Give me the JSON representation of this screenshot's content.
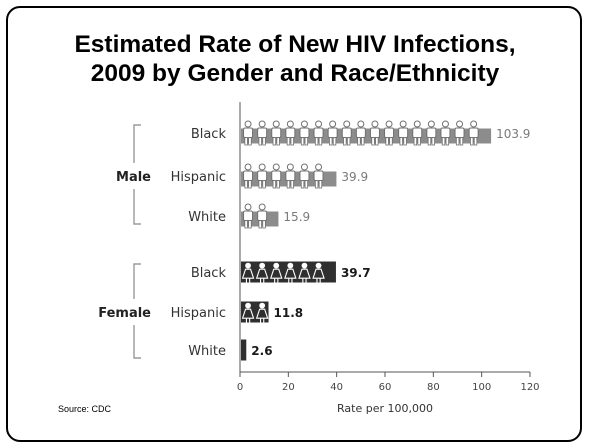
{
  "slide": {
    "title_line1": "Estimated Rate of New HIV Infections,",
    "title_line2": "2009 by Gender and Race/Ethnicity",
    "source": "Source: CDC"
  },
  "chart_data": {
    "type": "bar",
    "orientation": "horizontal",
    "style": "pictograph",
    "xlabel": "Rate per 100,000",
    "xlim": [
      0,
      120
    ],
    "xticks": [
      "0",
      "20",
      "40",
      "60",
      "80",
      "100",
      "120"
    ],
    "groups": [
      {
        "name": "Male",
        "color": "#8c8c8c",
        "label_color": "#7a7a7a",
        "icon": "male-figure-icon",
        "categories": [
          "Black",
          "Hispanic",
          "White"
        ],
        "values": [
          103.9,
          39.9,
          15.9
        ],
        "labels": [
          "103.9",
          "39.9",
          "15.9"
        ]
      },
      {
        "name": "Female",
        "color": "#2f2f2f",
        "label_color": "#1a1a1a",
        "icon": "female-figure-icon",
        "categories": [
          "Black",
          "Hispanic",
          "White"
        ],
        "values": [
          39.7,
          11.8,
          2.6
        ],
        "labels": [
          "39.7",
          "11.8",
          "2.6"
        ]
      }
    ],
    "grid": false,
    "legend": "none"
  }
}
